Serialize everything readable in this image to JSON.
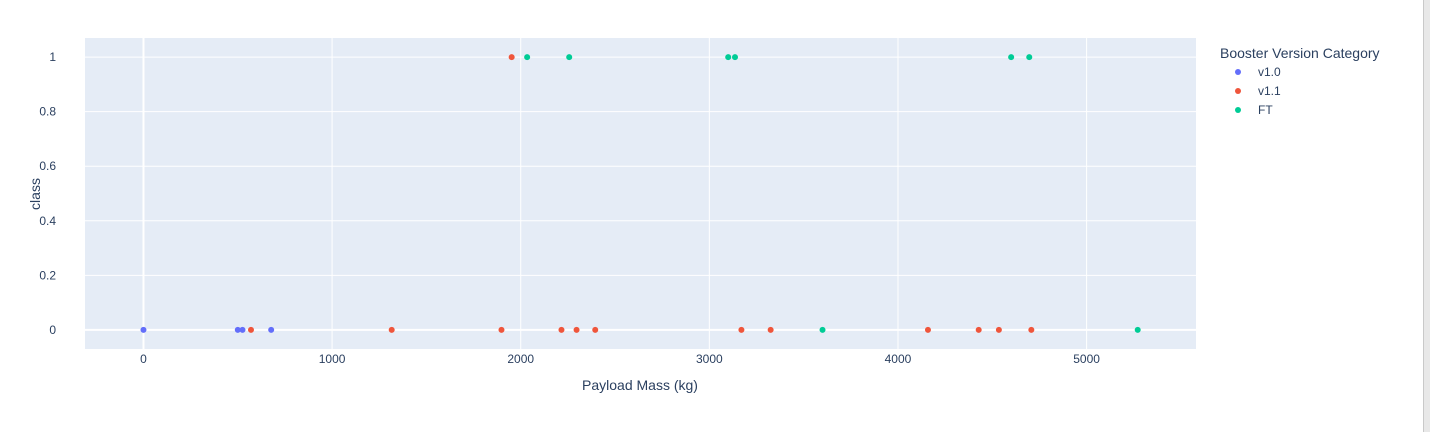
{
  "chart_data": {
    "type": "scatter",
    "xlabel": "Payload Mass (kg)",
    "ylabel": "class",
    "xlim": [
      -310,
      5580
    ],
    "ylim": [
      -0.07,
      1.07
    ],
    "xticks": [
      0,
      1000,
      2000,
      3000,
      4000,
      5000
    ],
    "xtick_labels": [
      "0",
      "1000",
      "2000",
      "3000",
      "4000",
      "5000"
    ],
    "yticks": [
      0,
      0.2,
      0.4,
      0.6,
      0.8,
      1
    ],
    "ytick_labels": [
      "0",
      "0.2",
      "0.4",
      "0.6",
      "0.8",
      "1"
    ],
    "grid": true,
    "legend": {
      "title": "Booster Version Category",
      "placement": "right"
    },
    "series": [
      {
        "name": "v1.0",
        "color": "#636efa",
        "points": [
          {
            "x": 0,
            "y": 0
          },
          {
            "x": 500,
            "y": 0
          },
          {
            "x": 525,
            "y": 0
          },
          {
            "x": 677,
            "y": 0
          }
        ]
      },
      {
        "name": "v1.1",
        "color": "#ef553b",
        "points": [
          {
            "x": 570,
            "y": 0
          },
          {
            "x": 1316,
            "y": 0
          },
          {
            "x": 1898,
            "y": 0
          },
          {
            "x": 1952,
            "y": 1
          },
          {
            "x": 2216,
            "y": 0
          },
          {
            "x": 2296,
            "y": 0
          },
          {
            "x": 2395,
            "y": 0
          },
          {
            "x": 3170,
            "y": 0
          },
          {
            "x": 3325,
            "y": 0
          },
          {
            "x": 4159,
            "y": 0
          },
          {
            "x": 4428,
            "y": 0
          },
          {
            "x": 4535,
            "y": 0
          },
          {
            "x": 4707,
            "y": 0
          }
        ]
      },
      {
        "name": "FT",
        "color": "#00cc96",
        "points": [
          {
            "x": 2034,
            "y": 1
          },
          {
            "x": 2257,
            "y": 1
          },
          {
            "x": 3100,
            "y": 1
          },
          {
            "x": 3136,
            "y": 1
          },
          {
            "x": 3600,
            "y": 0
          },
          {
            "x": 4600,
            "y": 1
          },
          {
            "x": 4696,
            "y": 1
          },
          {
            "x": 5271,
            "y": 0
          }
        ]
      }
    ]
  }
}
